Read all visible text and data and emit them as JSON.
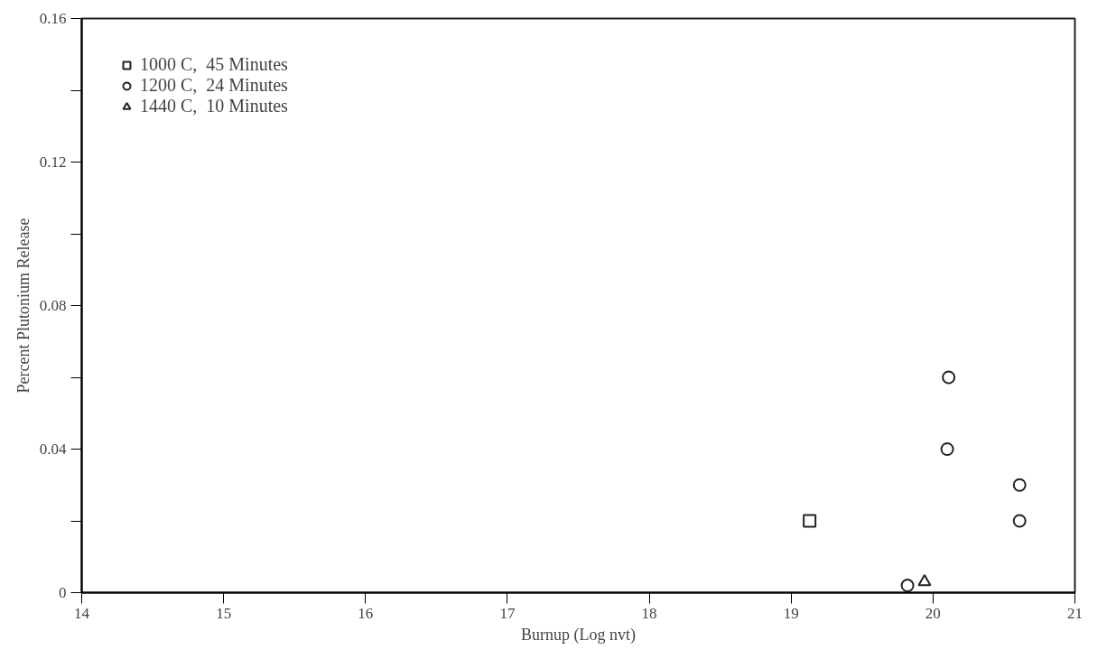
{
  "chart_data": {
    "type": "scatter",
    "xlabel": "Burnup (Log nvt)",
    "ylabel": "Percent Plutonium Release",
    "xlim": [
      14,
      21
    ],
    "xticks": [
      14,
      15,
      16,
      17,
      18,
      19,
      20,
      21
    ],
    "ylim": [
      0,
      0.16
    ],
    "yticks": [
      0,
      {
        "value": 0.02,
        "label": null
      },
      0.04,
      {
        "value": 0.06,
        "label": null
      },
      0.08,
      {
        "value": 0.1,
        "label": null
      },
      0.12,
      {
        "value": 0.14,
        "label": null
      },
      0.16
    ],
    "grid": false,
    "legend": "top left",
    "series": [
      {
        "name": "1000 C,  45 Minutes",
        "color": "#222222",
        "marker": "square",
        "x": [
          19.13
        ],
        "values": [
          0.02
        ]
      },
      {
        "name": "1200 C,  24 Minutes",
        "color": "#222222",
        "marker": "circle",
        "x": [
          19.82,
          20.11,
          20.1,
          20.61,
          20.61
        ],
        "values": [
          0.002,
          0.06,
          0.04,
          0.03,
          0.02
        ]
      },
      {
        "name": "1440 C,  10 Minutes",
        "color": "#222222",
        "marker": "triangle",
        "x": [
          19.94
        ],
        "values": [
          0.003
        ]
      }
    ]
  }
}
